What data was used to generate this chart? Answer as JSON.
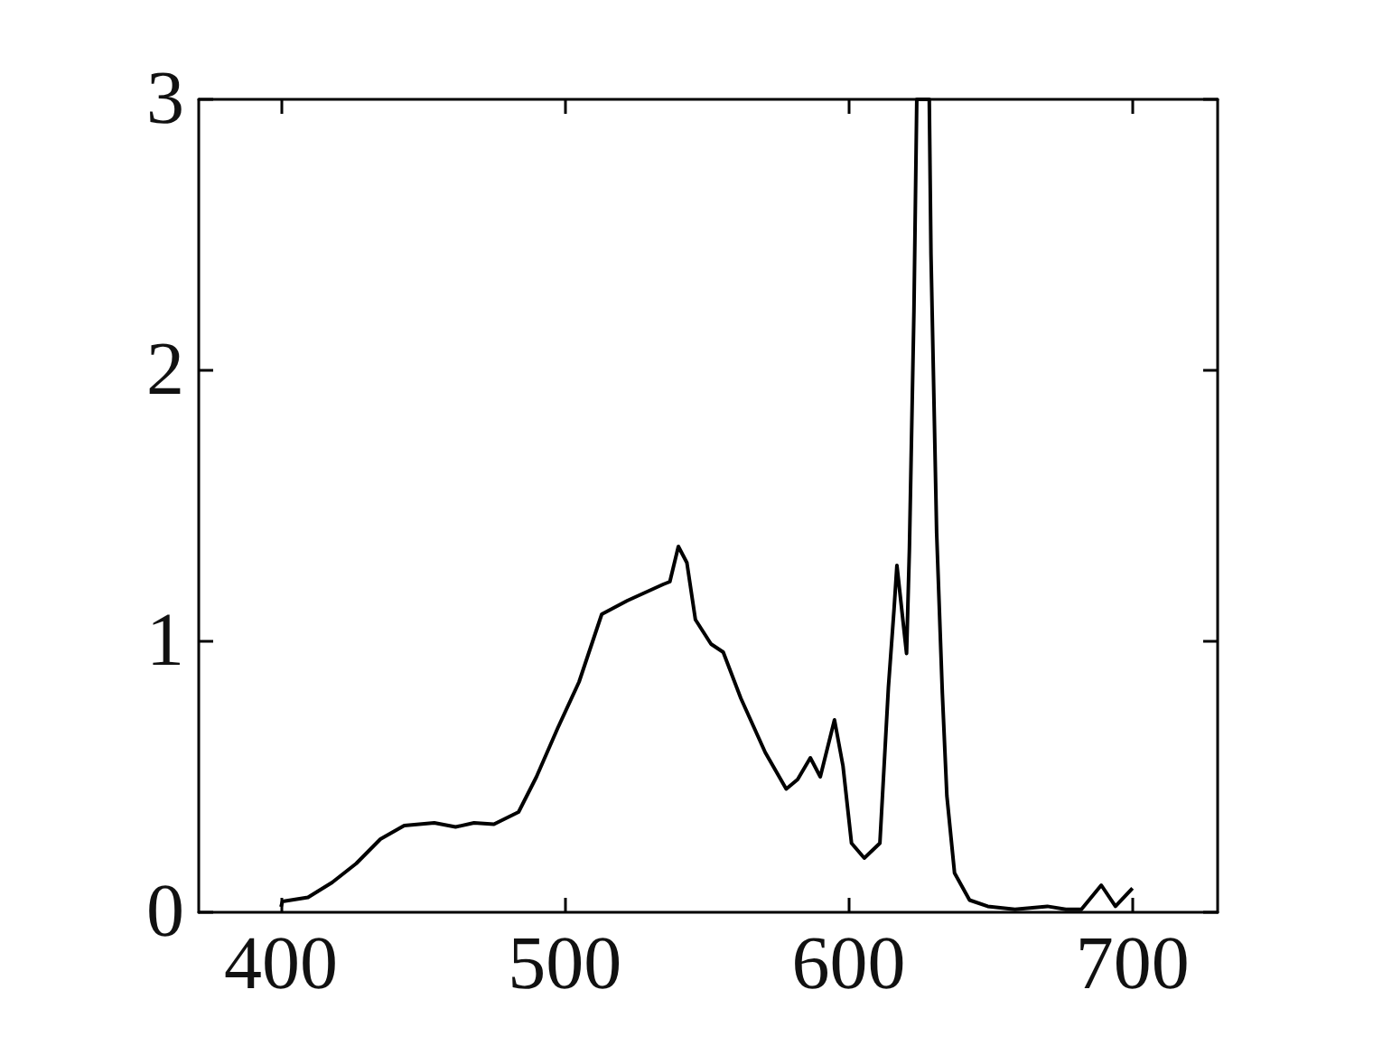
{
  "chart_data": {
    "type": "line",
    "xlim": [
      371,
      730
    ],
    "ylim": [
      0,
      3
    ],
    "xticks": [
      400,
      500,
      600,
      700
    ],
    "yticks": [
      0,
      1,
      2,
      3
    ],
    "grid": false,
    "marker": "none",
    "line_style": "solid",
    "series": [
      {
        "color": "#000000",
        "x": [
          400,
          400.5,
          409.5,
          418,
          426.5,
          435,
          443.4,
          454,
          461.5,
          468,
          475,
          483.7,
          490,
          497.5,
          505,
          513,
          522,
          534.6,
          537,
          540,
          543,
          546,
          551.5,
          555.8,
          562,
          570.6,
          578,
          582,
          586.5,
          590,
          595,
          598,
          601,
          605.5,
          611,
          614,
          616,
          617,
          620.4,
          621.4,
          623,
          624,
          628.4,
          629,
          631,
          633,
          634.6,
          637.3,
          642.6,
          649,
          658.6,
          670,
          676.5,
          682,
          689,
          694,
          700
        ],
        "values": [
          0.02,
          0.04,
          0.055,
          0.11,
          0.18,
          0.27,
          0.32,
          0.33,
          0.315,
          0.33,
          0.325,
          0.37,
          0.5,
          0.68,
          0.85,
          1.1,
          1.15,
          1.21,
          1.22,
          1.35,
          1.29,
          1.08,
          0.99,
          0.96,
          0.79,
          0.59,
          0.455,
          0.49,
          0.57,
          0.5,
          0.71,
          0.54,
          0.255,
          0.2,
          0.255,
          0.83,
          1.12,
          1.28,
          0.955,
          1.34,
          2.22,
          3,
          3,
          2.43,
          1.4,
          0.81,
          0.43,
          0.145,
          0.045,
          0.022,
          0.011,
          0.022,
          0.011,
          0.011,
          0.1,
          0.022,
          0.089
        ]
      }
    ]
  }
}
